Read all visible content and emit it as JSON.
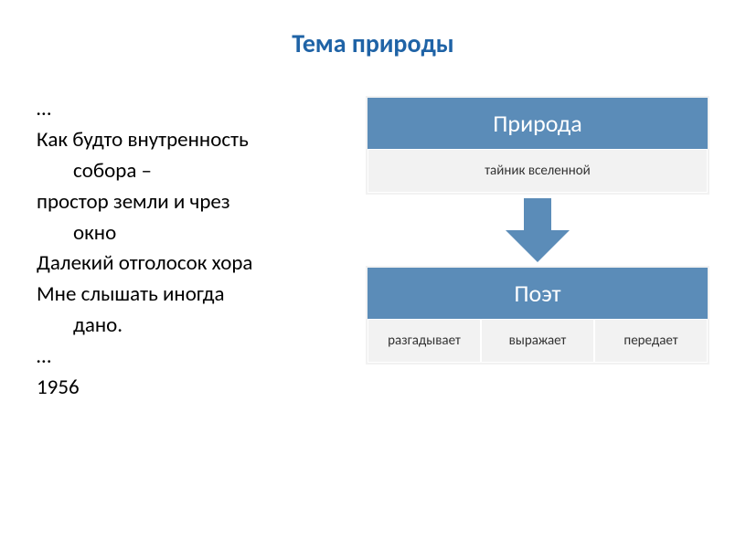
{
  "title": {
    "text": "Тема природы",
    "color": "#1f63a6"
  },
  "poem": {
    "lines": [
      {
        "text": "…",
        "indent": false
      },
      {
        "text": "Как будто внутренность",
        "indent": false
      },
      {
        "text": "собора –",
        "indent": true
      },
      {
        "text": "простор земли и чрез",
        "indent": false
      },
      {
        "text": "окно",
        "indent": true
      },
      {
        "text": "Далекий отголосок хора",
        "indent": false
      },
      {
        "text": "Мне слышать иногда",
        "indent": false
      },
      {
        "text": "дано.",
        "indent": true
      },
      {
        "text": "…",
        "indent": false
      },
      {
        "text": "1956",
        "indent": false
      }
    ]
  },
  "diagram": {
    "type": "flowchart",
    "colors": {
      "header_bg": "#5b8cb8",
      "header_text": "#ffffff",
      "sub_bg": "#f2f2f2",
      "sub_text": "#333333",
      "arrow": "#5b8cb8"
    },
    "top_block": {
      "header": "Природа",
      "sub_cells": [
        "тайник вселенной"
      ]
    },
    "bottom_block": {
      "header": "Поэт",
      "sub_cells": [
        "разгадывает",
        "выражает",
        "передает"
      ]
    }
  }
}
